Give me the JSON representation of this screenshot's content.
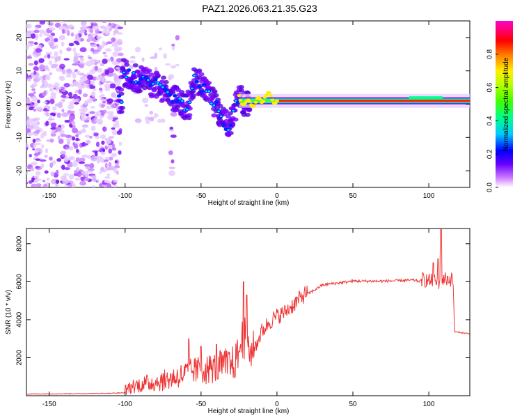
{
  "title": "PAZ1.2026.063.21.35.G23",
  "chart_data": [
    {
      "type": "heatmap",
      "name": "spectrogram",
      "xlabel": "Height of straight line (km)",
      "ylabel": "Frequency (Hz)",
      "xlim": [
        -165,
        127
      ],
      "ylim": [
        -25,
        25
      ],
      "xticks": [
        -150,
        -100,
        -50,
        0,
        50,
        100
      ],
      "yticks": [
        -20,
        -10,
        0,
        10,
        20
      ],
      "description_ridge": [
        {
          "x": -102,
          "y": 10
        },
        {
          "x": -95,
          "y": 8
        },
        {
          "x": -88,
          "y": 7
        },
        {
          "x": -80,
          "y": 6
        },
        {
          "x": -72,
          "y": 3
        },
        {
          "x": -65,
          "y": 1
        },
        {
          "x": -58,
          "y": -1
        },
        {
          "x": -55,
          "y": 8
        },
        {
          "x": -45,
          "y": 3
        },
        {
          "x": -38,
          "y": -3
        },
        {
          "x": -32,
          "y": -7
        },
        {
          "x": -25,
          "y": 2
        },
        {
          "x": -20,
          "y": 0
        },
        {
          "x": -10,
          "y": 1
        },
        {
          "x": -8,
          "y": 3
        },
        {
          "x": 0,
          "y": 1
        },
        {
          "x": 20,
          "y": 1
        },
        {
          "x": 60,
          "y": 1
        },
        {
          "x": 100,
          "y": 1.5
        },
        {
          "x": 127,
          "y": 1
        }
      ],
      "colorbar": {
        "label": "Normalized spectral amplitude",
        "range": [
          0,
          1
        ],
        "ticks": [
          "0.0",
          "0.2",
          "0.4",
          "0.6",
          "0.8"
        ],
        "colors": [
          "#ffffff",
          "#cc66ff",
          "#7700ff",
          "#0000ff",
          "#00ffff",
          "#00ff00",
          "#ffff00",
          "#ff8800",
          "#ff0000",
          "#ff00aa"
        ]
      }
    },
    {
      "type": "line",
      "name": "snr",
      "xlabel": "Height of straight line (km)",
      "ylabel": "SNR (10 * v/v)",
      "xlim": [
        -165,
        127
      ],
      "ylim": [
        0,
        8800
      ],
      "xticks": [
        -150,
        -100,
        -50,
        0,
        50,
        100
      ],
      "yticks": [
        2000,
        4000,
        6000,
        8000
      ],
      "color": "#ee3333",
      "envelope": [
        {
          "x": -165,
          "y": 80
        },
        {
          "x": -130,
          "y": 100
        },
        {
          "x": -110,
          "y": 120
        },
        {
          "x": -100,
          "y": 150
        },
        {
          "x": -95,
          "y": 350
        },
        {
          "x": -85,
          "y": 450
        },
        {
          "x": -75,
          "y": 550
        },
        {
          "x": -65,
          "y": 750
        },
        {
          "x": -55,
          "y": 1000
        },
        {
          "x": -45,
          "y": 1050
        },
        {
          "x": -35,
          "y": 1200
        },
        {
          "x": -28,
          "y": 1300
        },
        {
          "x": -22,
          "y": 2500
        },
        {
          "x": -18,
          "y": 1800
        },
        {
          "x": -15,
          "y": 2300
        },
        {
          "x": -10,
          "y": 3200
        },
        {
          "x": -5,
          "y": 3700
        },
        {
          "x": 0,
          "y": 4000
        },
        {
          "x": 5,
          "y": 4200
        },
        {
          "x": 12,
          "y": 4700
        },
        {
          "x": 20,
          "y": 5300
        },
        {
          "x": 30,
          "y": 5800
        },
        {
          "x": 40,
          "y": 5900
        },
        {
          "x": 50,
          "y": 6000
        },
        {
          "x": 70,
          "y": 6000
        },
        {
          "x": 90,
          "y": 6050
        },
        {
          "x": 100,
          "y": 5900
        },
        {
          "x": 106,
          "y": 5800
        },
        {
          "x": 110,
          "y": 6000
        },
        {
          "x": 116,
          "y": 5950
        },
        {
          "x": 117,
          "y": 3350
        },
        {
          "x": 127,
          "y": 3250
        }
      ],
      "spikes": [
        {
          "x": -58,
          "y": 3000
        },
        {
          "x": -50,
          "y": 2600
        },
        {
          "x": -40,
          "y": 2700
        },
        {
          "x": -22,
          "y": 6000
        },
        {
          "x": -20,
          "y": 5300
        },
        {
          "x": 108,
          "y": 8800
        },
        {
          "x": 106,
          "y": 7200
        },
        {
          "x": 103,
          "y": 7000
        }
      ]
    }
  ]
}
